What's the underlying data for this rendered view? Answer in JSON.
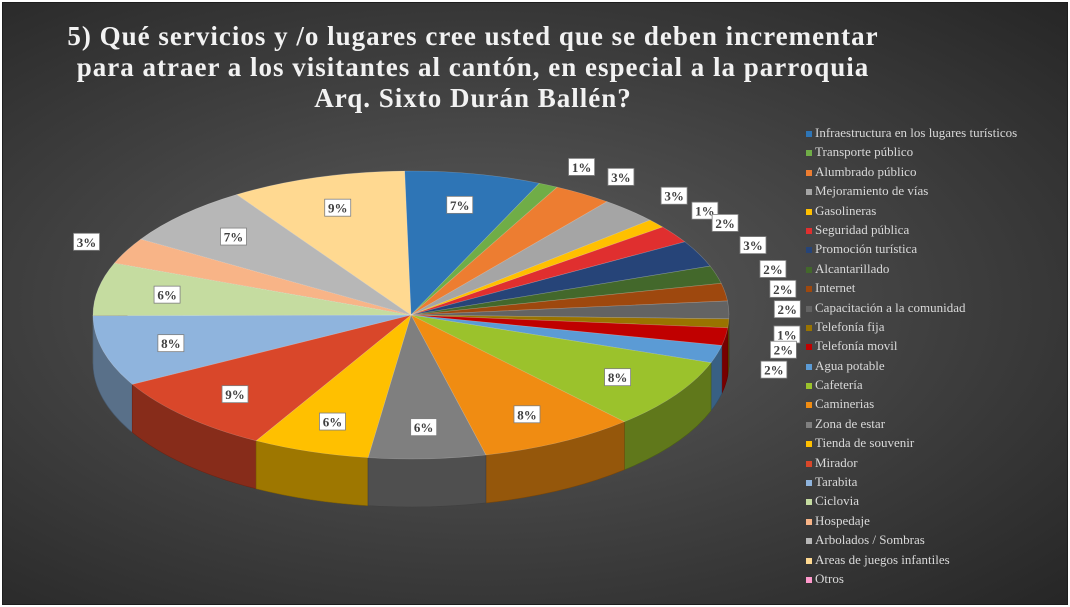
{
  "chart_data": {
    "type": "pie",
    "title": "5) Qué servicios y /o lugares cree usted que se deben incrementar\npara atraer a los visitantes al cantón, en especial a la parroquia\nArq. Sixto Durán Ballén?",
    "legend_position": "right",
    "categories": [
      "Infraestructura en los lugares turísticos",
      "Transporte público",
      "Alumbrado público",
      "Mejoramiento de vías",
      "Gasolineras",
      "Seguridad pública",
      "Promoción turística",
      "Alcantarillado",
      "Internet",
      "Capacitación a la comunidad",
      "Telefonía fija",
      "Telefonía movil",
      "Agua potable",
      "Cafetería",
      "Caminerias",
      "Zona de estar",
      "Tienda de souvenir",
      "Mirador",
      "Tarabita",
      "Ciclovia",
      "Hospedaje",
      "Arbolados / Sombras",
      "Areas de juegos infantiles",
      "Otros"
    ],
    "values": [
      7,
      1,
      3,
      3,
      1,
      2,
      3,
      2,
      2,
      2,
      1,
      2,
      2,
      8,
      8,
      6,
      6,
      9,
      8,
      6,
      3,
      7,
      9,
      0
    ],
    "labels": [
      "7%",
      "1%",
      "3%",
      "3%",
      "1%",
      "2%",
      "3%",
      "2%",
      "2%",
      "2%",
      "1%",
      "2%",
      "2%",
      "8%",
      "8%",
      "6%",
      "6%",
      "9%",
      "8%",
      "6%",
      "3%",
      "7%",
      "9%",
      ""
    ],
    "colors": [
      "#2e75b6",
      "#70ad47",
      "#ed7d31",
      "#a5a5a5",
      "#ffc000",
      "#e02f2f",
      "#264478",
      "#43682b",
      "#9e480e",
      "#636363",
      "#997300",
      "#c00000",
      "#5b9bd5",
      "#9bc22c",
      "#f08c12",
      "#7f7f7f",
      "#ffc000",
      "#d9472a",
      "#8fb4dd",
      "#c5dca0",
      "#f8b487",
      "#b7b7b7",
      "#ffd991",
      "#ff99cc"
    ]
  }
}
